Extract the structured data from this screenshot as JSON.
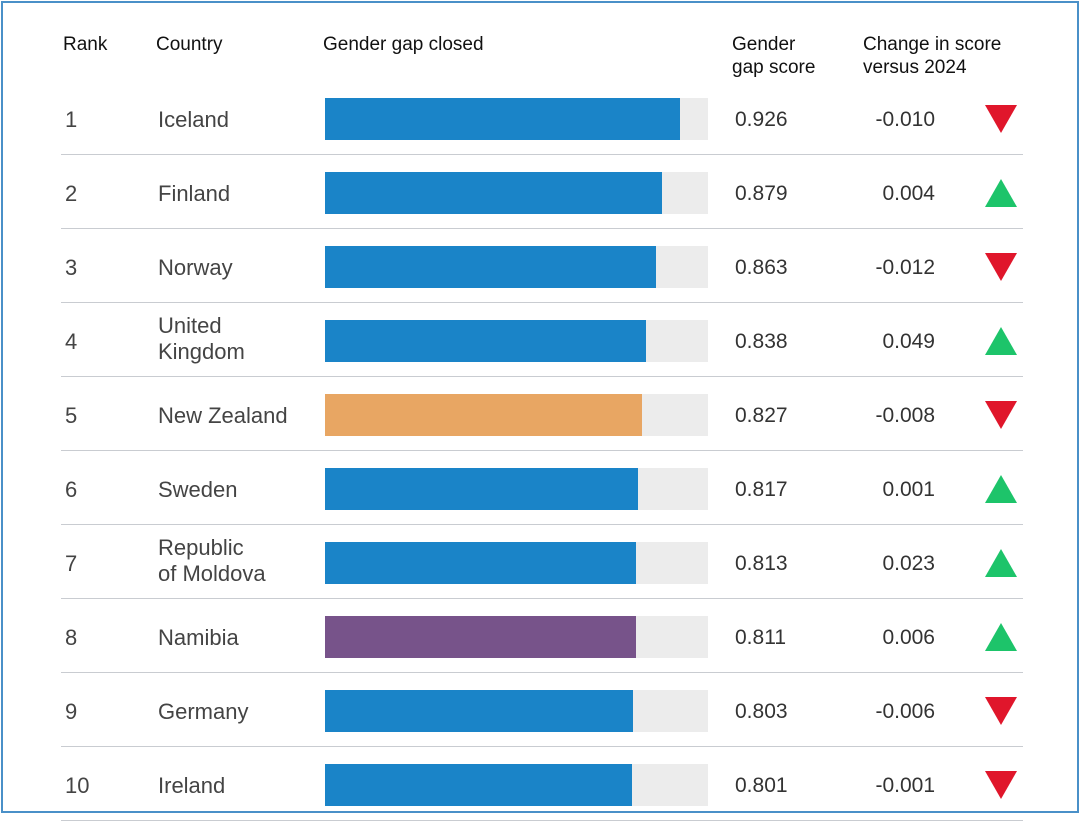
{
  "headers": {
    "rank": "Rank",
    "country": "Country",
    "bar": "Gender gap closed",
    "score_line1": "Gender",
    "score_line2": "gap score",
    "change_line1": "Change in score",
    "change_line2": "versus 2024"
  },
  "colors": {
    "default_bar": "#1a84c8",
    "highlight_orange": "#e8a663",
    "highlight_purple": "#77538a",
    "track": "#ececec",
    "decrease": "#e0162b",
    "increase": "#1dc46a"
  },
  "chart_data": {
    "type": "bar",
    "orientation": "horizontal",
    "title": "",
    "xlim": [
      0,
      1
    ],
    "rows": [
      {
        "rank": "1",
        "country": [
          "Iceland"
        ],
        "score": 0.926,
        "score_label": "0.926",
        "change_label": "-0.010",
        "direction": "down",
        "color": "#1a84c8"
      },
      {
        "rank": "2",
        "country": [
          "Finland"
        ],
        "score": 0.879,
        "score_label": "0.879",
        "change_label": "0.004",
        "direction": "up",
        "color": "#1a84c8"
      },
      {
        "rank": "3",
        "country": [
          "Norway"
        ],
        "score": 0.863,
        "score_label": "0.863",
        "change_label": "-0.012",
        "direction": "down",
        "color": "#1a84c8"
      },
      {
        "rank": "4",
        "country": [
          "United",
          "Kingdom"
        ],
        "score": 0.838,
        "score_label": "0.838",
        "change_label": "0.049",
        "direction": "up",
        "color": "#1a84c8"
      },
      {
        "rank": "5",
        "country": [
          "New Zealand"
        ],
        "score": 0.827,
        "score_label": "0.827",
        "change_label": "-0.008",
        "direction": "down",
        "color": "#e8a663"
      },
      {
        "rank": "6",
        "country": [
          "Sweden"
        ],
        "score": 0.817,
        "score_label": "0.817",
        "change_label": "0.001",
        "direction": "up",
        "color": "#1a84c8"
      },
      {
        "rank": "7",
        "country": [
          "Republic",
          "of Moldova"
        ],
        "score": 0.813,
        "score_label": "0.813",
        "change_label": "0.023",
        "direction": "up",
        "color": "#1a84c8"
      },
      {
        "rank": "8",
        "country": [
          "Namibia"
        ],
        "score": 0.811,
        "score_label": "0.811",
        "change_label": "0.006",
        "direction": "up",
        "color": "#77538a"
      },
      {
        "rank": "9",
        "country": [
          "Germany"
        ],
        "score": 0.803,
        "score_label": "0.803",
        "change_label": "-0.006",
        "direction": "down",
        "color": "#1a84c8"
      },
      {
        "rank": "10",
        "country": [
          "Ireland"
        ],
        "score": 0.801,
        "score_label": "0.801",
        "change_label": "-0.001",
        "direction": "down",
        "color": "#1a84c8"
      }
    ]
  }
}
